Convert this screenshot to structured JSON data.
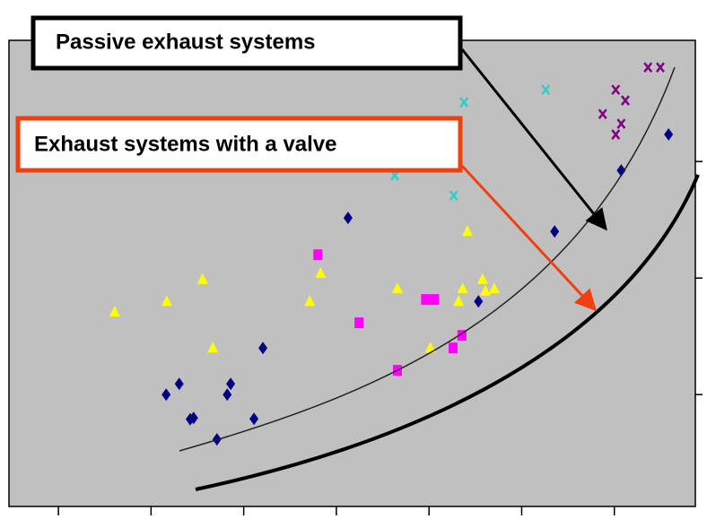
{
  "chart_data": {
    "type": "scatter",
    "annotations": [
      "Passive exhaust systems",
      "Exhaust systems with a valve"
    ],
    "xlim": [
      0,
      100
    ],
    "ylim": [
      0,
      100
    ],
    "xticks": [
      7.2,
      20.7,
      34.2,
      47.7,
      61.2,
      74.7,
      88.2
    ],
    "yticks": [
      24,
      49,
      74
    ],
    "series": [
      {
        "color": "#000080",
        "marker": "diamond",
        "x": [
          22.9,
          24.8,
          26.4,
          26.9,
          30.3,
          31.8,
          32.3,
          35.7,
          37.0,
          79.5,
          89.2,
          96.1,
          49.4,
          68.4
        ],
        "values": [
          24.0,
          26.3,
          18.7,
          19.0,
          14.4,
          24.0,
          26.3,
          18.8,
          34.0,
          59.0,
          72.1,
          79.8,
          61.9,
          44.0
        ]
      },
      {
        "color": "#ffff00",
        "marker": "triangle",
        "x": [
          15.4,
          23.0,
          28.2,
          29.7,
          43.8,
          45.4,
          56.6,
          61.4,
          66.8,
          65.5,
          66.1,
          69.0,
          69.4,
          70.7
        ],
        "values": [
          41.7,
          44.0,
          48.7,
          34.0,
          44.0,
          50.0,
          46.7,
          34.0,
          59.0,
          44.0,
          46.7,
          48.7,
          46.2,
          46.7
        ]
      },
      {
        "color": "#ff00ff",
        "marker": "square",
        "x": [
          45.0,
          60.7,
          62.0,
          51.0,
          56.6,
          66.0,
          64.7
        ],
        "values": [
          54.0,
          44.4,
          44.4,
          39.4,
          29.2,
          36.7,
          34.0
        ]
      },
      {
        "color": "#33cccc",
        "marker": "x",
        "x": [
          66.3,
          78.2,
          64.8,
          56.2
        ],
        "values": [
          86.7,
          89.4,
          66.7,
          71.0
        ]
      },
      {
        "color": "#800080",
        "marker": "x",
        "x": [
          93.1,
          94.9,
          88.4,
          89.8,
          86.5,
          89.2,
          88.4
        ],
        "values": [
          94.2,
          94.2,
          89.4,
          87.1,
          84.2,
          82.1,
          79.8
        ]
      }
    ]
  }
}
